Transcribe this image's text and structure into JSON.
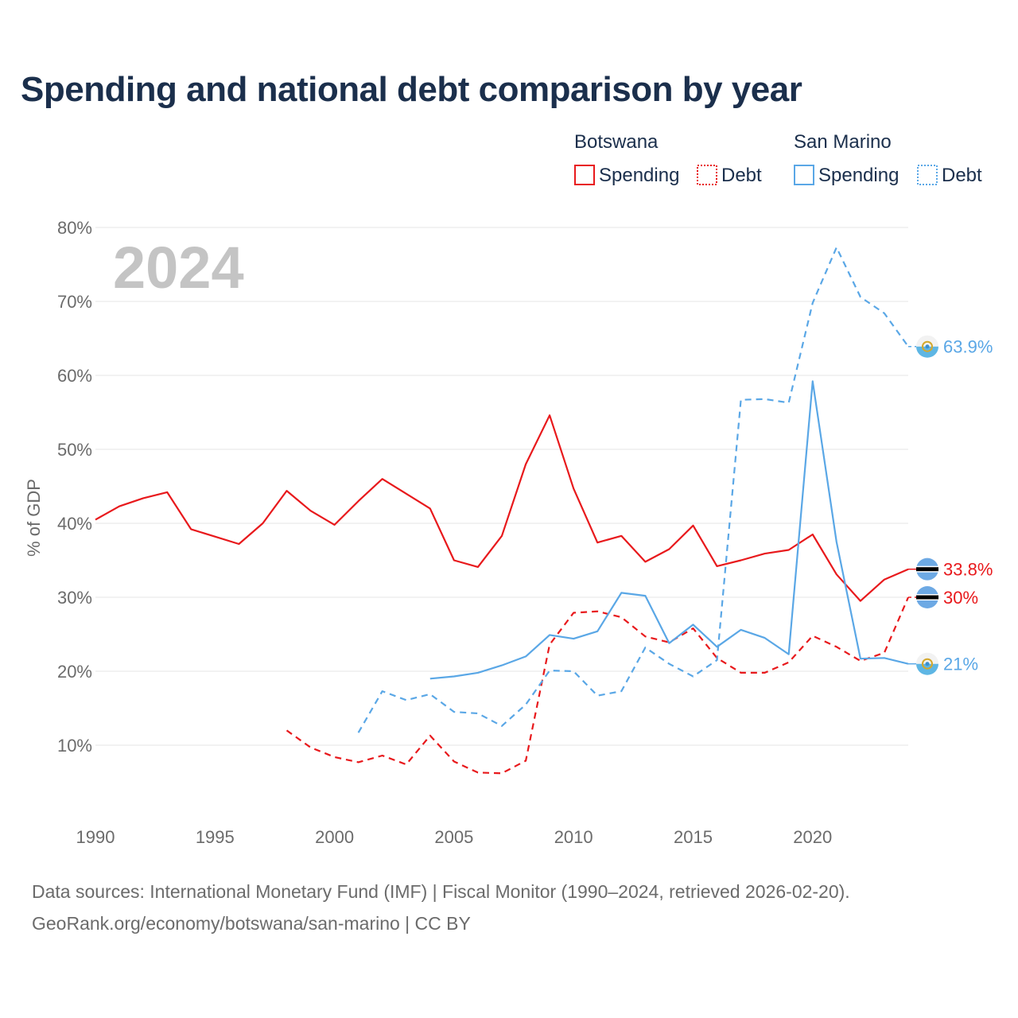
{
  "title": "Spending and national debt comparison by year",
  "year_watermark": "2024",
  "footer": {
    "sources": "Data sources: International Monetary Fund (IMF) | Fiscal Monitor (1990–2024, retrieved 2026-02-20).",
    "credit": "GeoRank.org/economy/botswana/san-marino | CC BY"
  },
  "legend": {
    "groups": [
      {
        "name": "Botswana",
        "color": "#e8191c",
        "items": [
          "Spending",
          "Debt"
        ]
      },
      {
        "name": "San Marino",
        "color": "#5aa7e6",
        "items": [
          "Spending",
          "Debt"
        ]
      }
    ]
  },
  "chart_data": {
    "type": "line",
    "title": "Spending and national debt comparison by year",
    "xlabel": "",
    "ylabel": "% of GDP",
    "xlim": [
      1990,
      2024
    ],
    "ylim": [
      0,
      80
    ],
    "x_ticks": [
      1990,
      1995,
      2000,
      2005,
      2010,
      2015,
      2020
    ],
    "x_tick_labels": [
      "1990",
      "1995",
      "2000",
      "2005",
      "2010",
      "2015",
      "2020"
    ],
    "y_ticks": [
      10,
      20,
      30,
      40,
      50,
      60,
      70,
      80
    ],
    "y_tick_labels": [
      "10%",
      "20%",
      "30%",
      "40%",
      "50%",
      "60%",
      "70%",
      "80%"
    ],
    "grid": true,
    "legend_position": "top-right",
    "series": [
      {
        "name": "Botswana Spending",
        "color": "#e8191c",
        "dash": false,
        "start_year": 1990,
        "values": [
          40.5,
          42.3,
          43.4,
          44.2,
          39.2,
          38.2,
          37.2,
          40.0,
          44.4,
          41.7,
          39.8,
          43.0,
          46.0,
          44.0,
          42.0,
          35.0,
          34.1,
          38.3,
          48.0,
          54.6,
          44.7,
          37.4,
          38.3,
          34.8,
          36.5,
          39.7,
          34.2,
          35.0,
          35.9,
          36.4,
          38.5,
          33.1,
          29.5,
          32.4,
          33.8
        ],
        "end_label": "33.8%"
      },
      {
        "name": "Botswana Debt",
        "color": "#e8191c",
        "dash": true,
        "start_year": 1998,
        "values": [
          12.0,
          9.7,
          8.4,
          7.7,
          8.6,
          7.4,
          11.3,
          7.8,
          6.3,
          6.2,
          7.9,
          23.6,
          27.9,
          28.1,
          27.3,
          24.7,
          23.9,
          25.8,
          21.8,
          19.8,
          19.8,
          21.2,
          24.8,
          23.3,
          21.4,
          22.5,
          30.0
        ],
        "end_label": "30%"
      },
      {
        "name": "San Marino Spending",
        "color": "#5aa7e6",
        "dash": false,
        "start_year": 2004,
        "values": [
          19.0,
          19.3,
          19.8,
          20.8,
          22.0,
          24.9,
          24.4,
          25.4,
          30.6,
          30.2,
          23.8,
          26.3,
          23.3,
          25.6,
          24.5,
          22.3,
          59.2,
          37.5,
          21.7,
          21.8,
          21.0
        ],
        "end_label": "21%"
      },
      {
        "name": "San Marino Debt",
        "color": "#5aa7e6",
        "dash": true,
        "start_year": 2001,
        "values": [
          11.7,
          17.3,
          16.1,
          16.9,
          14.5,
          14.3,
          12.6,
          15.5,
          20.1,
          20.0,
          16.7,
          17.3,
          23.2,
          21.0,
          19.3,
          21.5,
          56.7,
          56.8,
          56.3,
          69.8,
          77.3,
          70.6,
          68.4,
          63.9
        ],
        "end_label": "63.9%"
      }
    ]
  }
}
